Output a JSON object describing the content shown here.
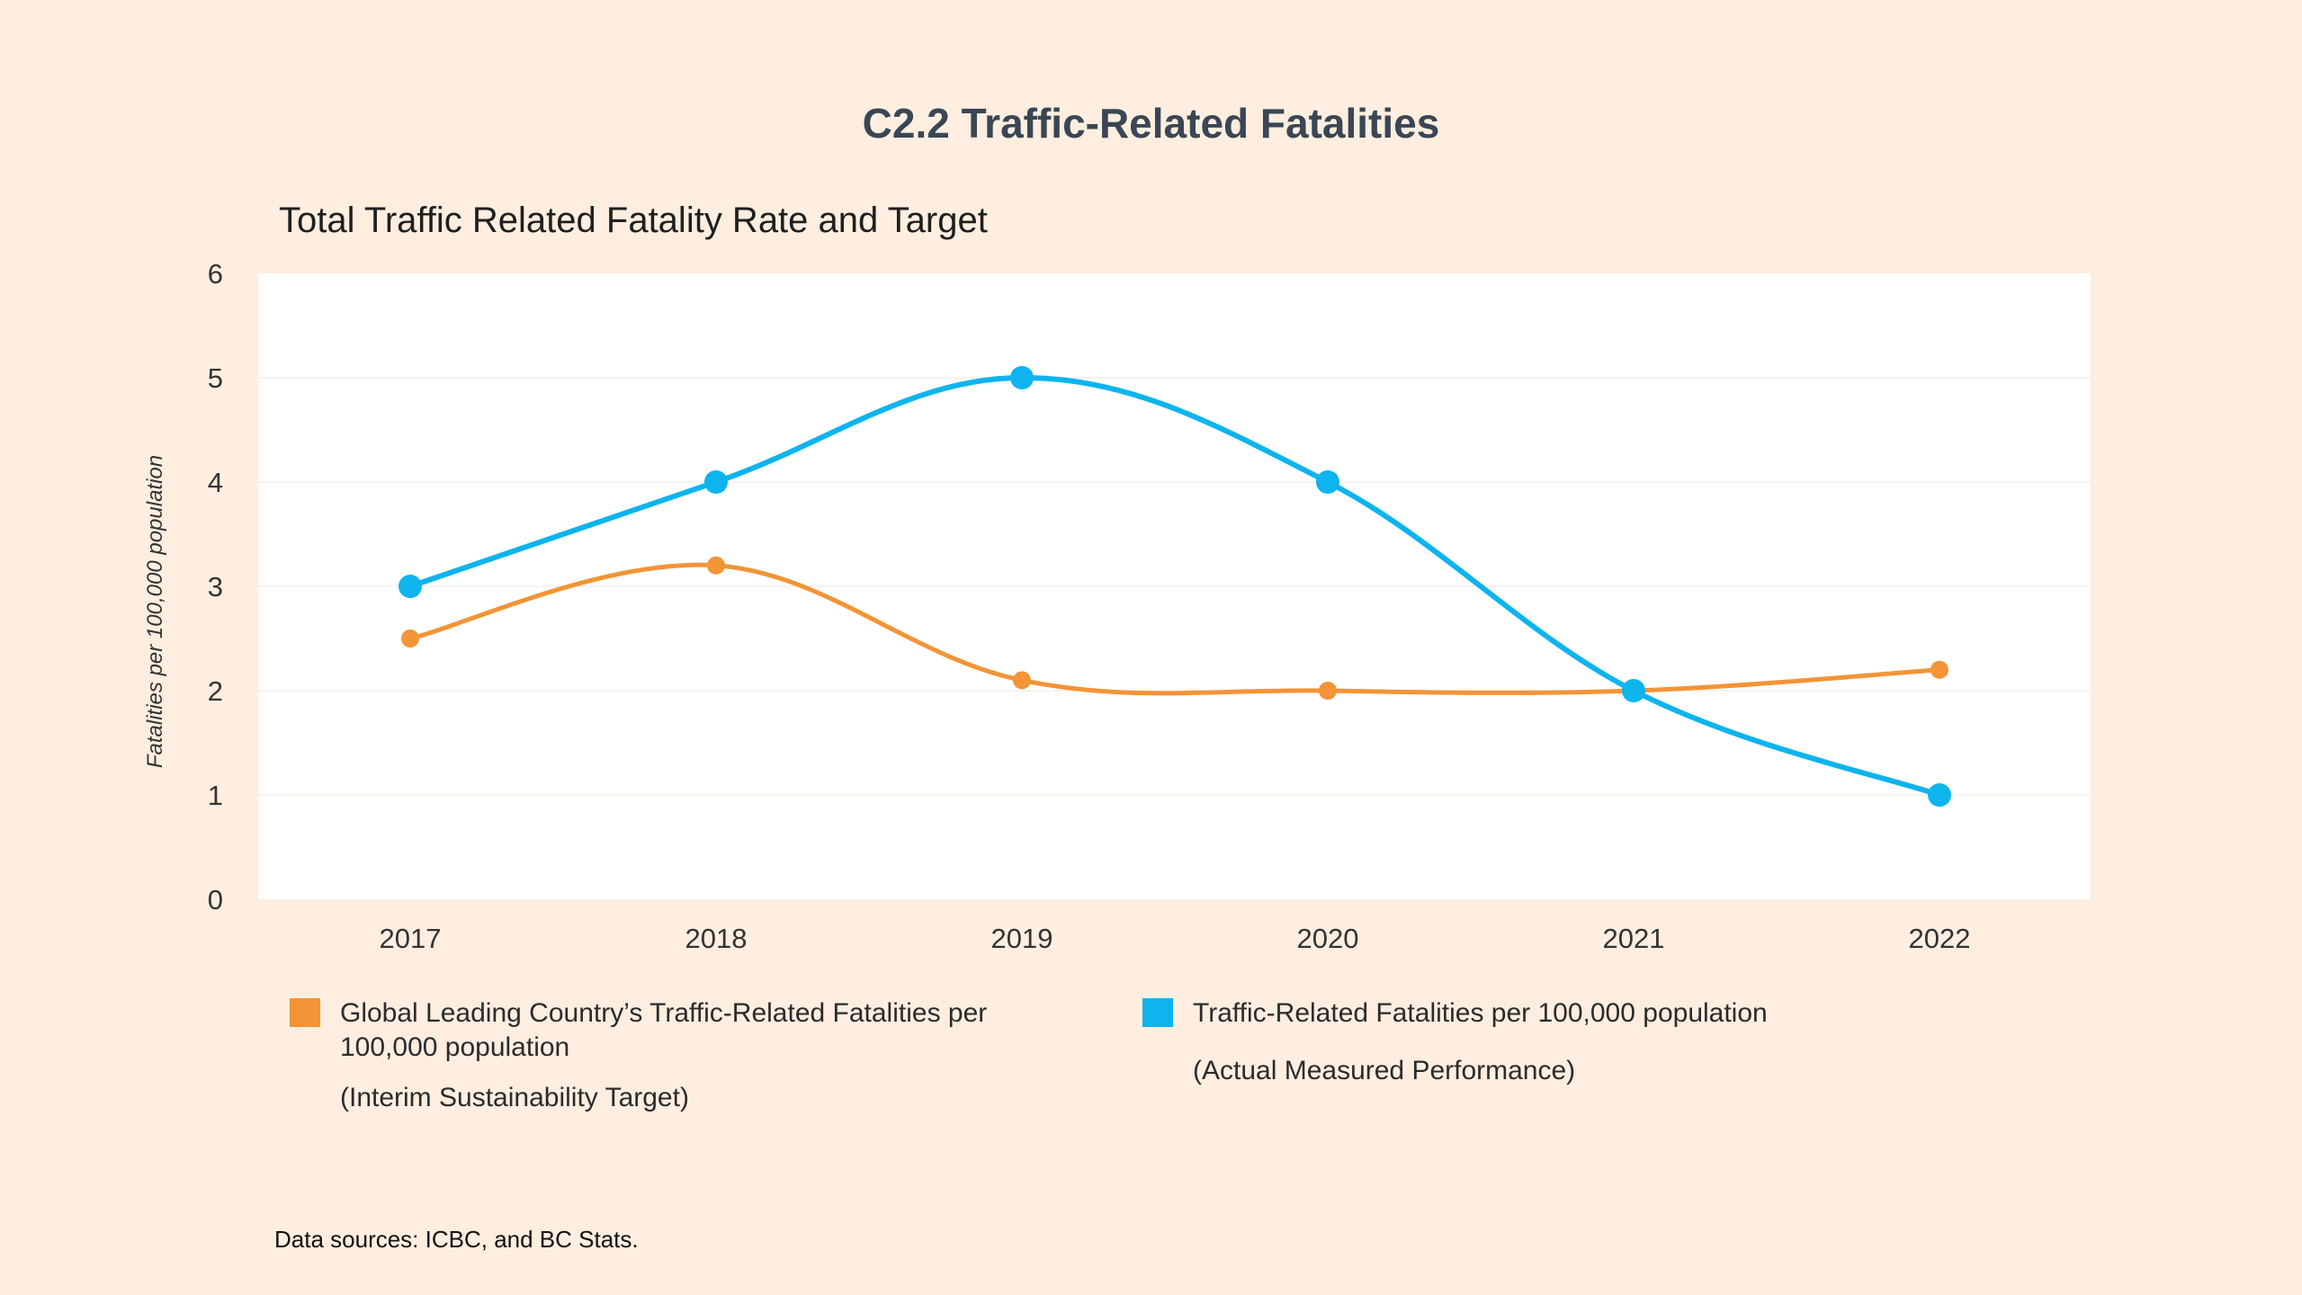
{
  "page": {
    "title": "C2.2 Traffic-Related Fatalities",
    "source": "Data sources: ICBC, and BC Stats."
  },
  "chart_data": {
    "type": "line",
    "title": "Total Traffic Related Fatality Rate and Target",
    "xlabel": "",
    "ylabel": "Fatalities per 100,000 population",
    "categories": [
      "2017",
      "2018",
      "2019",
      "2020",
      "2021",
      "2022"
    ],
    "ylim": [
      0,
      6
    ],
    "yticks": [
      "0",
      "1",
      "2",
      "3",
      "4",
      "5",
      "6"
    ],
    "grid": true,
    "smooth": true,
    "legend_position": "bottom",
    "series": [
      {
        "name": "Global Leading Country’s Traffic-Related Fatalities per 100,000 population",
        "note": "(Interim Sustainability Target)",
        "color": "#f39436",
        "values": [
          2.5,
          3.2,
          2.1,
          2.0,
          2.0,
          2.2
        ]
      },
      {
        "name": "Traffic-Related Fatalities per 100,000 population",
        "note": "(Actual Measured Performance)",
        "color": "#0db4ee",
        "values": [
          3,
          4,
          5,
          4,
          2,
          1
        ]
      }
    ]
  }
}
